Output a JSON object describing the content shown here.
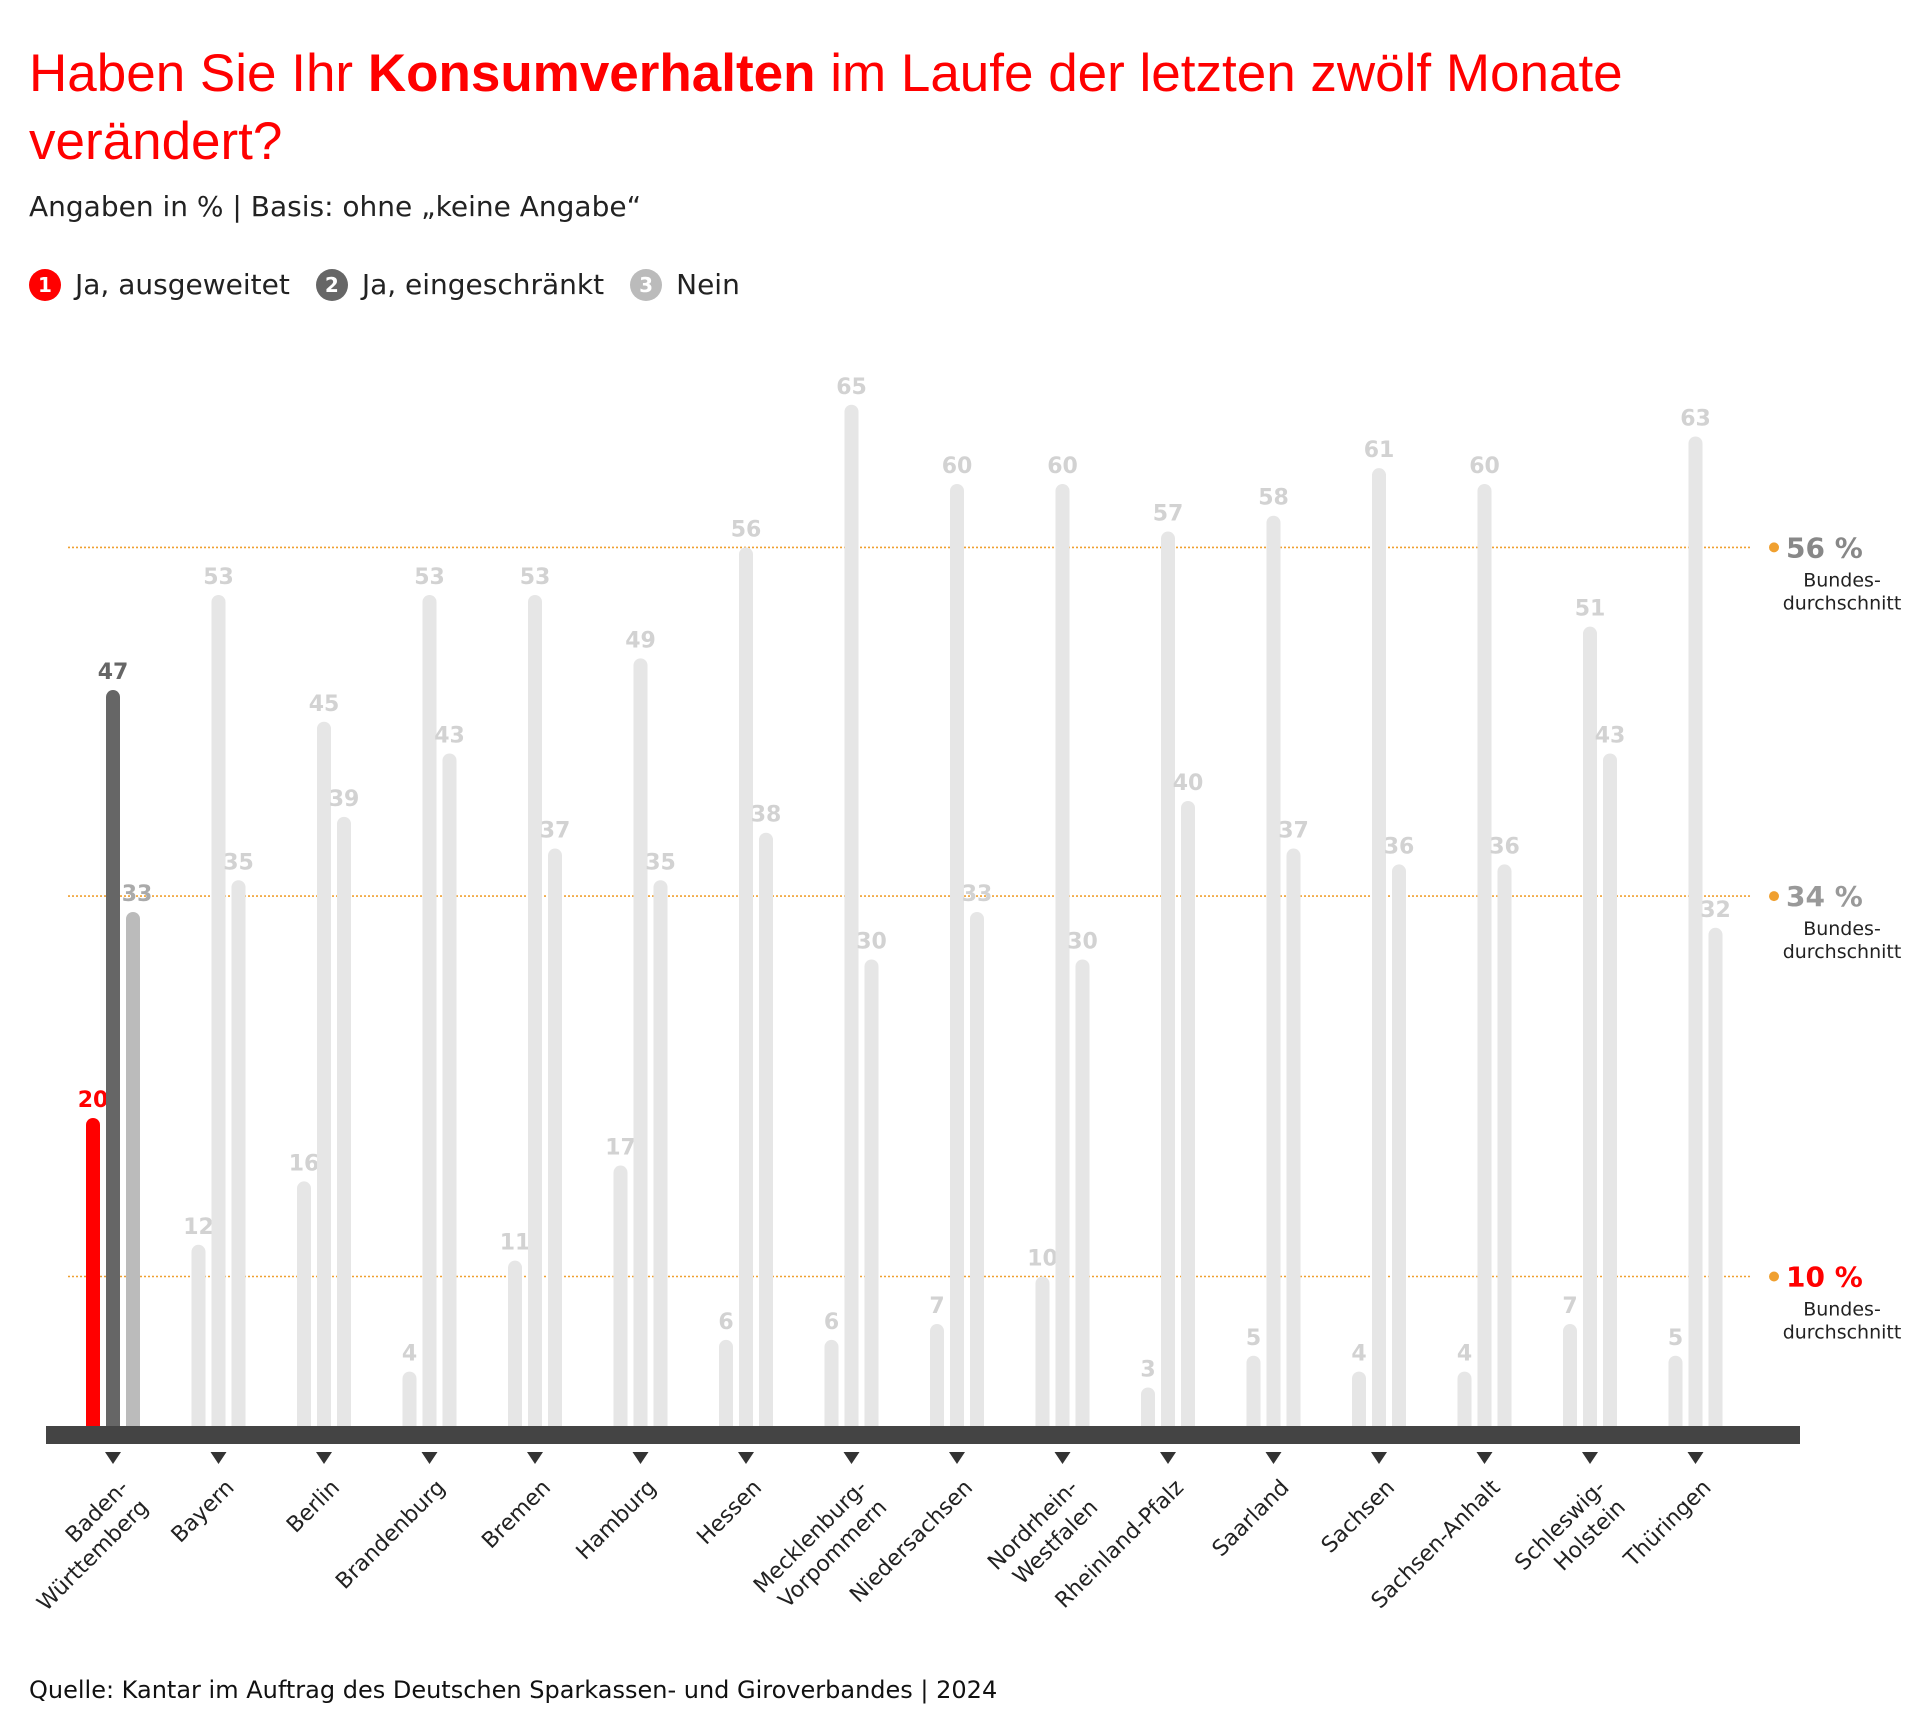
{
  "title_part1": "Haben Sie Ihr ",
  "title_bold": "Konsumverhalten",
  "title_part2": " im Laufe der letzten zwölf Monate verändert?",
  "subtitle": "Angaben in % | Basis: ohne „keine Angabe“",
  "legend": [
    {
      "num": "1",
      "label": "Ja, ausgeweitet",
      "color": "#ff0000"
    },
    {
      "num": "2",
      "label": "Ja, eingeschränkt",
      "color": "#666666"
    },
    {
      "num": "3",
      "label": "Nein",
      "color": "#bbbbbb"
    }
  ],
  "source": "Quelle: Kantar im Auftrag des Deutschen Sparkassen- und Giroverbandes | 2024",
  "chart_data": {
    "type": "bar",
    "title": "Haben Sie Ihr Konsumverhalten im Laufe der letzten zwölf Monate verändert?",
    "subtitle": "Angaben in % | Basis: ohne „keine Angabe“",
    "xlabel": "",
    "ylabel": "",
    "ylim": [
      0,
      65
    ],
    "categories": [
      [
        "Baden-",
        "Württemberg"
      ],
      [
        "Bayern"
      ],
      [
        "Berlin"
      ],
      [
        "Brandenburg"
      ],
      [
        "Bremen"
      ],
      [
        "Hamburg"
      ],
      [
        "Hessen"
      ],
      [
        "Mecklenburg-",
        "Vorpommern"
      ],
      [
        "Niedersachsen"
      ],
      [
        "Nordrhein-",
        "Westfalen"
      ],
      [
        "Rheinland-Pfalz"
      ],
      [
        "Saarland"
      ],
      [
        "Sachsen"
      ],
      [
        "Sachsen-Anhalt"
      ],
      [
        "Schleswig-",
        "Holstein"
      ],
      [
        "Thüringen"
      ]
    ],
    "series": [
      {
        "name": "Ja, ausgeweitet",
        "values": [
          20,
          12,
          16,
          4,
          11,
          17,
          6,
          6,
          7,
          10,
          3,
          5,
          4,
          4,
          7,
          5
        ]
      },
      {
        "name": "Ja, eingeschränkt",
        "values": [
          47,
          53,
          45,
          53,
          53,
          49,
          56,
          65,
          60,
          60,
          57,
          58,
          61,
          60,
          51,
          63
        ]
      },
      {
        "name": "Nein",
        "values": [
          33,
          35,
          39,
          43,
          37,
          35,
          38,
          30,
          33,
          30,
          40,
          37,
          36,
          36,
          43,
          32
        ]
      }
    ],
    "highlight_index": 0,
    "highlight_colors": [
      "#ff0000",
      "#666666",
      "#bbbbbb"
    ],
    "muted_bar_color": "#e6e6e6",
    "muted_label_color": "#d2d2d2",
    "reference_lines": [
      {
        "value": 56,
        "label": "56 %",
        "sub": [
          "Bundes-",
          "durchschnitt"
        ],
        "color": "#888888"
      },
      {
        "value": 34,
        "label": "34 %",
        "sub": [
          "Bundes-",
          "durchschnitt"
        ],
        "color": "#999999"
      },
      {
        "value": 10,
        "label": "10 %",
        "sub": [
          "Bundes-",
          "durchschnitt"
        ],
        "color": "#ff0000"
      }
    ],
    "reference_line_color": "#f0a030",
    "axis_color": "#444444"
  }
}
